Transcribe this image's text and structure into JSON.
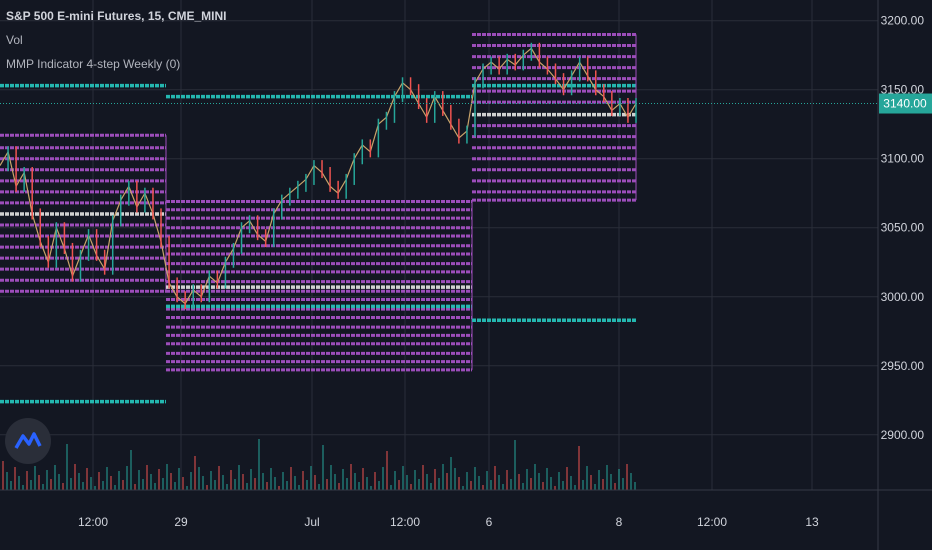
{
  "header": {
    "symbol_line": "S&P 500 E-mini Futures, 15, CME_MINI",
    "volume_label": "Vol",
    "indicator_label": "MMP Indicator 4-step Weekly (0)"
  },
  "chart_data": {
    "type": "line",
    "title": "S&P 500 E-mini Futures, 15, CME_MINI",
    "xlabel": "",
    "ylabel": "",
    "ylim": [
      2860,
      3215
    ],
    "y_ticks": [
      2900,
      2950,
      3000,
      3050,
      3100,
      3150,
      3200
    ],
    "y_tick_labels": [
      "2900.00",
      "2950.00",
      "3000.00",
      "3050.00",
      "3100.00",
      "3150.00",
      "3200.00"
    ],
    "x_tick_labels": [
      "12:00",
      "29",
      "Jul",
      "12:00",
      "6",
      "8",
      "12:00",
      "13"
    ],
    "last_price": 3140,
    "last_price_label": "3140.00",
    "grid": true,
    "series": [
      {
        "type": "candlestick-approx",
        "values": [
          3095,
          3105,
          3080,
          3090,
          3060,
          3040,
          3025,
          3050,
          3035,
          3015,
          3030,
          3045,
          3030,
          3020,
          3055,
          3070,
          3080,
          3065,
          3075,
          3060,
          3040,
          3010,
          3000,
          2995,
          3005,
          3000,
          3015,
          3010,
          3025,
          3035,
          3050,
          3055,
          3045,
          3040,
          3060,
          3070,
          3075,
          3080,
          3085,
          3095,
          3090,
          3080,
          3075,
          3085,
          3100,
          3110,
          3105,
          3125,
          3130,
          3145,
          3155,
          3150,
          3140,
          3130,
          3145,
          3135,
          3125,
          3115,
          3120,
          3155,
          3165,
          3170,
          3165,
          3172,
          3168,
          3175,
          3180,
          3170,
          3165,
          3158,
          3150,
          3160,
          3170,
          3160,
          3150,
          3145,
          3135,
          3140,
          3130,
          3140
        ]
      }
    ],
    "mmp_blocks": [
      {
        "period": "week 1 (before 29)",
        "levels": [
          3117,
          3108,
          3100,
          3092,
          3084,
          3076,
          3068,
          3060,
          3052,
          3044,
          3036,
          3028,
          3020,
          3012,
          3004
        ],
        "mid_level": 3060,
        "upper_cyan": 3153,
        "lower_cyan": 2924
      },
      {
        "period": "week 2 (29 – Jul)",
        "levels": [
          3069,
          3063,
          3057,
          3050,
          3044,
          3037,
          3031,
          3024,
          3018,
          3011,
          3004,
          2998,
          2991,
          2985,
          2978,
          2972,
          2966,
          2959,
          2953,
          2947
        ],
        "mid_level": 3007,
        "upper_cyan": 3145,
        "lower_cyan": 2993
      },
      {
        "period": "week 3 (6 – 8)",
        "levels": [
          3190,
          3182,
          3174,
          3166,
          3158,
          3149,
          3141,
          3132,
          3124,
          3116,
          3108,
          3100,
          3092,
          3084,
          3076,
          3070
        ],
        "mid_level": 3132,
        "upper_cyan": 3153,
        "lower_cyan": 2983
      }
    ],
    "volume_bars_note": "volume histogram along bottom"
  },
  "colors": {
    "background": "#131722",
    "grid": "#2a2e39",
    "mmp_level": "#9c4dba",
    "mid_level": "#d1d1d1",
    "cyan_level": "#24b7b0",
    "candle_up": "#26a69a",
    "candle_down": "#ef5350",
    "axis_text": "#d1d4dc",
    "price_badge": "#26a69a"
  },
  "icons": {
    "logo": "tradingview-logo-icon"
  }
}
